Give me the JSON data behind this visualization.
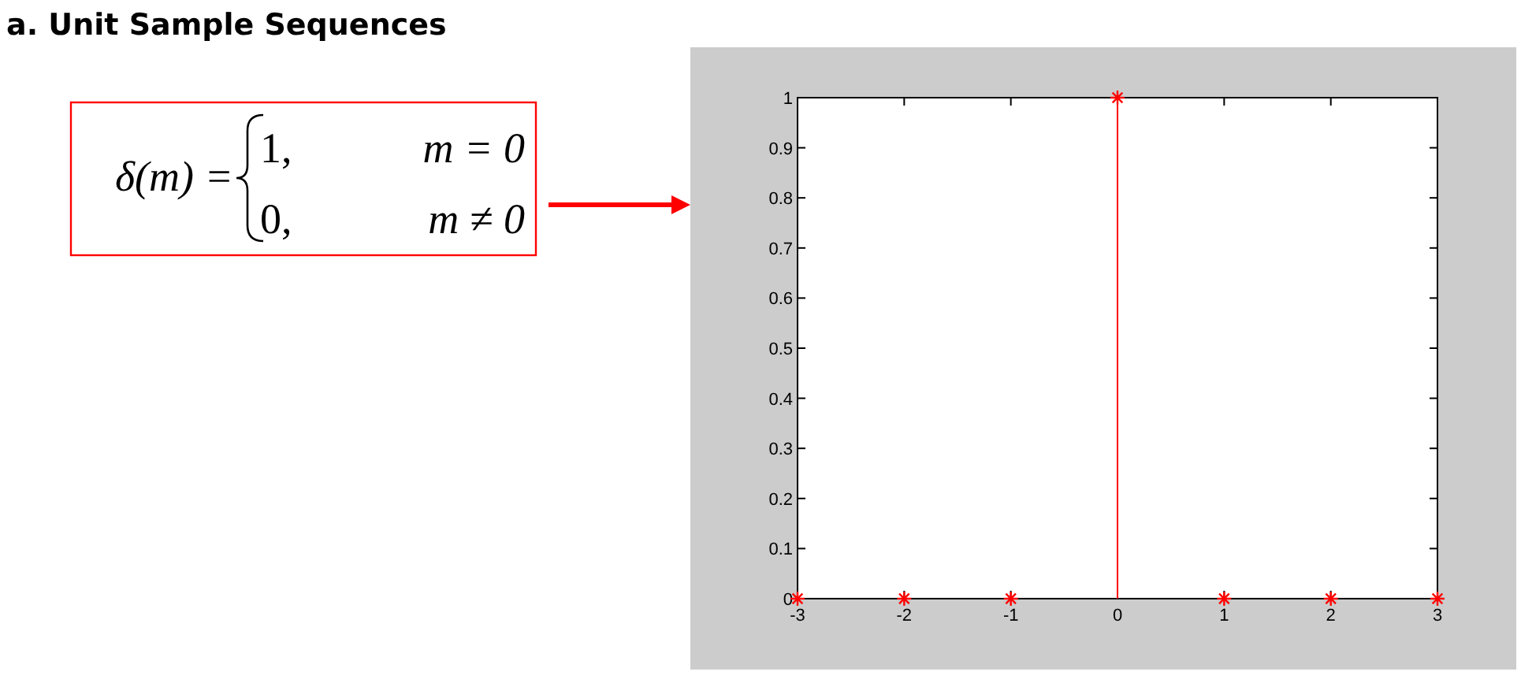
{
  "chart_data": {
    "type": "lollipop",
    "title": "a. Unit Sample Sequences",
    "x": [
      -3,
      -2,
      -1,
      0,
      1,
      2,
      3
    ],
    "series": [
      {
        "color": "#ff0000",
        "values": [
          0,
          0,
          0,
          1,
          0,
          0,
          0
        ]
      }
    ],
    "xlim": [
      -3,
      3
    ],
    "xticks": [
      -3,
      -2,
      -1,
      0,
      1,
      2,
      3
    ],
    "ylim": [
      0,
      1
    ],
    "yticks": [
      0,
      0.1,
      0.2,
      0.3,
      0.4,
      0.5,
      0.6,
      0.7,
      0.8,
      0.9,
      1
    ],
    "marker": "cross",
    "grid": false,
    "annotations": [
      "δ(m) =",
      "1,",
      "m = 0",
      "0,",
      "m ≠ 0"
    ]
  }
}
